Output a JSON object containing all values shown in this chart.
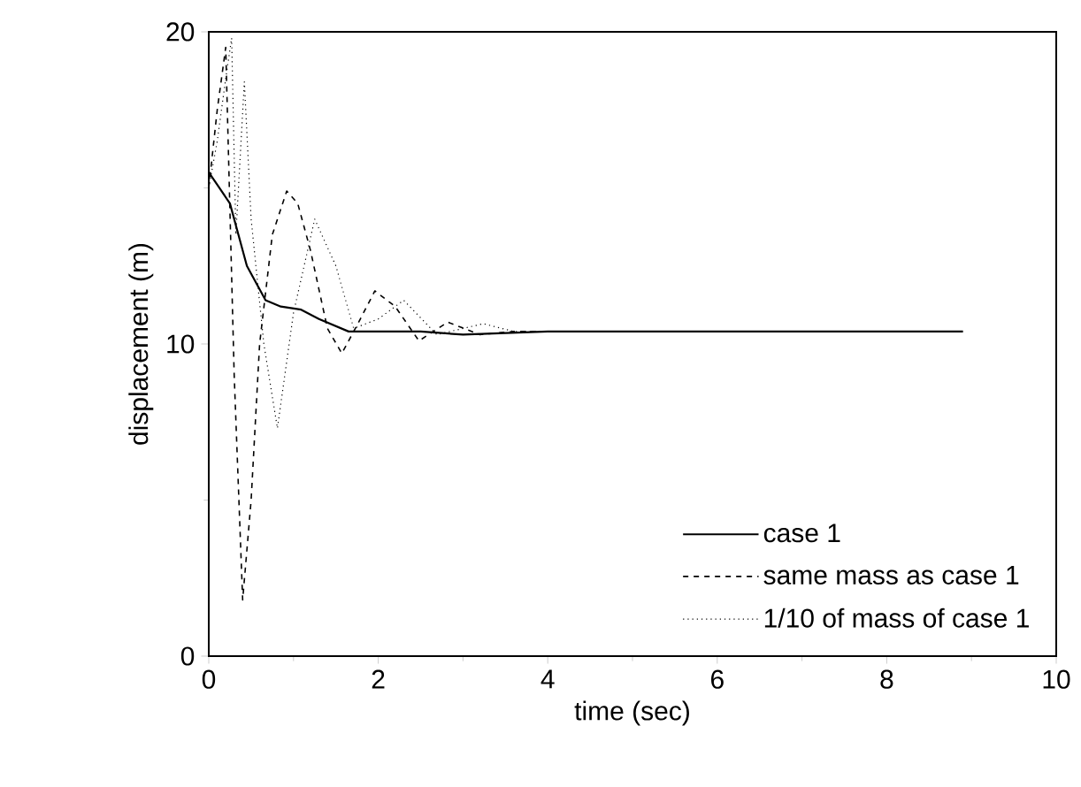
{
  "chart_data": {
    "type": "line",
    "xlabel": "time (sec)",
    "ylabel": "displacement (m)",
    "xlim": [
      0,
      10
    ],
    "ylim": [
      0,
      20
    ],
    "xticks": [
      0,
      2,
      4,
      6,
      8,
      10
    ],
    "yticks": [
      0,
      10,
      20
    ],
    "legend": "bottom right",
    "grid": false,
    "marker": "none",
    "series": [
      {
        "name": "case 1",
        "color": "#000000",
        "line_style": "solid",
        "x": [
          0,
          0.1,
          0.25,
          0.45,
          0.67,
          0.85,
          1.09,
          1.3,
          1.65,
          2.0,
          2.5,
          3.0,
          4.0,
          5.0,
          6.0,
          7.0,
          8.0,
          8.9
        ],
        "values": [
          15.5,
          15.1,
          14.5,
          12.5,
          11.4,
          11.2,
          11.1,
          10.8,
          10.4,
          10.4,
          10.4,
          10.3,
          10.4,
          10.4,
          10.4,
          10.4,
          10.4,
          10.4
        ]
      },
      {
        "name": "same mass as case 1",
        "color": "#000000",
        "line_style": "dashed",
        "x": [
          0,
          0.1,
          0.2,
          0.3,
          0.4,
          0.5,
          0.6,
          0.75,
          0.92,
          1.05,
          1.2,
          1.4,
          1.57,
          1.75,
          1.96,
          2.2,
          2.48,
          2.82,
          3.2,
          3.6,
          4.0,
          4.3
        ],
        "values": [
          15,
          17.5,
          19.5,
          9,
          1.8,
          5,
          10,
          13.5,
          14.9,
          14.5,
          13,
          10.5,
          9.7,
          10.6,
          11.7,
          11.2,
          10.1,
          10.7,
          10.3,
          10.4,
          10.4,
          10.4
        ]
      },
      {
        "name": "1/10 of mass of case 1",
        "color": "#000000",
        "line_style": "dotted",
        "x": [
          0,
          0.1,
          0.2,
          0.27,
          0.32,
          0.42,
          0.5,
          0.65,
          0.81,
          1.0,
          1.25,
          1.5,
          1.71,
          2.0,
          2.3,
          2.69,
          3.24,
          3.6,
          4.0,
          4.5
        ],
        "values": [
          15,
          16.5,
          18.5,
          19.8,
          13.5,
          18.4,
          14,
          10,
          7.3,
          11,
          14,
          12.5,
          10.5,
          10.8,
          11.4,
          10.3,
          10.65,
          10.4,
          10.4,
          10.4
        ]
      }
    ]
  }
}
